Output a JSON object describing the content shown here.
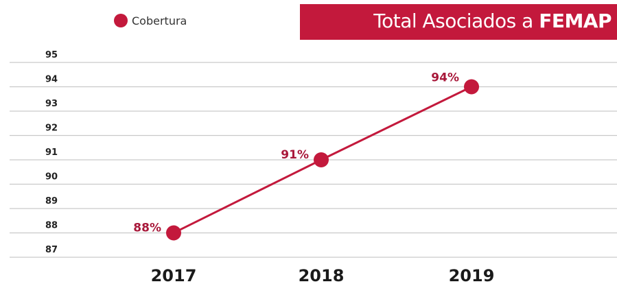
{
  "title": {
    "prefix": "Total Asociados a ",
    "emphasis": "FEMAP"
  },
  "legend": {
    "entries": [
      {
        "label": "Cobertura",
        "color": "#c3193c"
      }
    ]
  },
  "chart_data": {
    "type": "line",
    "title": "Total Asociados a FEMAP",
    "xlabel": "",
    "ylabel": "",
    "categories": [
      "2017",
      "2018",
      "2019"
    ],
    "series": [
      {
        "name": "Cobertura",
        "values": [
          88,
          91,
          94
        ],
        "data_labels": [
          "88%",
          "91%",
          "94%"
        ],
        "color": "#c3193c"
      }
    ],
    "ylim": [
      87,
      95
    ],
    "yticks": [
      "95",
      "94",
      "93",
      "92",
      "91",
      "90",
      "89",
      "88",
      "87"
    ],
    "grid": true,
    "legend_position": "top-left"
  }
}
